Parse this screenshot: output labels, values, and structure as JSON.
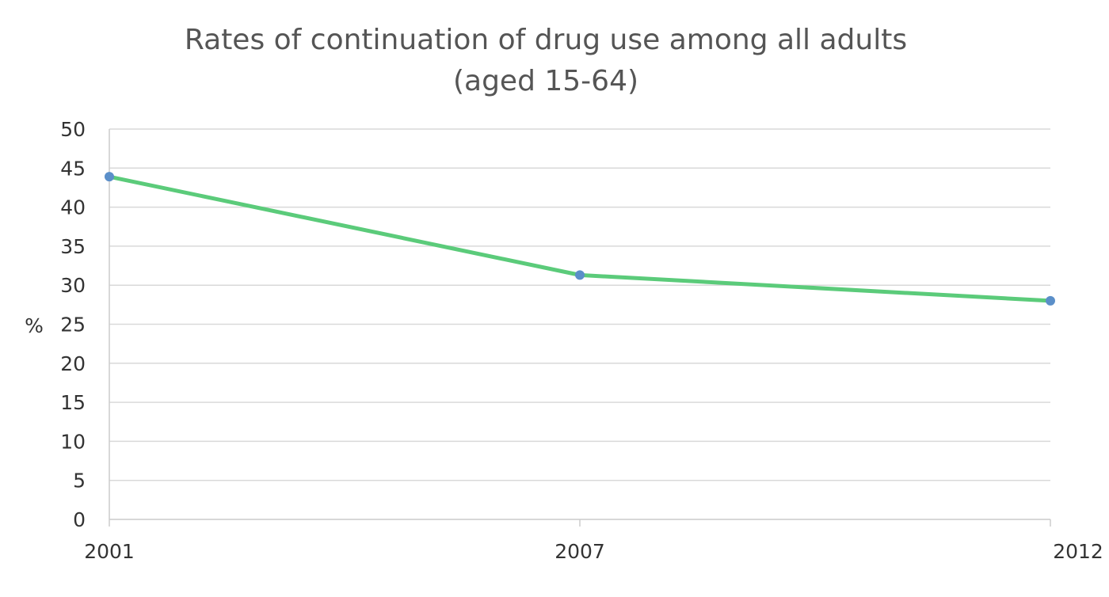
{
  "chart_data": {
    "type": "line",
    "title": "Rates of continuation of drug use among all adults",
    "subtitle": "(aged 15-64)",
    "xlabel": "",
    "ylabel": "%",
    "categories": [
      "2001",
      "2007",
      "2012"
    ],
    "series": [
      {
        "values": [
          43.9,
          31.3,
          28.0
        ],
        "color": "#5bcb7a",
        "marker_color": "#5b8fc9"
      }
    ],
    "ylim": [
      0,
      50
    ],
    "yticks": [
      0,
      5,
      10,
      15,
      20,
      25,
      30,
      35,
      40,
      45,
      50
    ],
    "grid": true,
    "legend": "none"
  }
}
